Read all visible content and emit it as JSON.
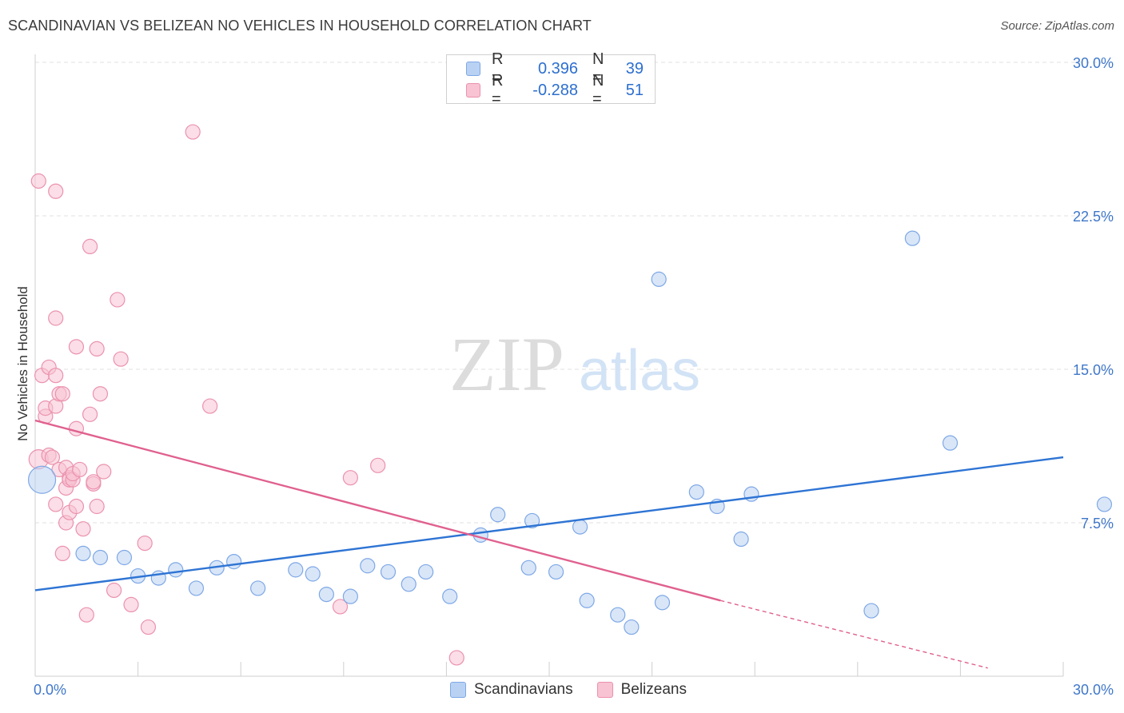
{
  "header": {
    "title": "SCANDINAVIAN VS BELIZEAN NO VEHICLES IN HOUSEHOLD CORRELATION CHART",
    "source": "Source: ZipAtlas.com"
  },
  "legend_top": [
    {
      "r_label": "R =",
      "r_value": "0.396",
      "n_label": "N =",
      "n_value": "39"
    },
    {
      "r_label": "R =",
      "r_value": "-0.288",
      "n_label": "N =",
      "n_value": "51"
    }
  ],
  "legend_bottom": [
    {
      "label": "Scandinavians"
    },
    {
      "label": "Belizeans"
    }
  ],
  "watermark": {
    "zip": "ZIP",
    "atlas": "atlas"
  },
  "colors": {
    "blue_fill": "#b9d2f3",
    "blue_stroke": "#7ea8e6",
    "blue_line": "#2e74d4",
    "pink_fill": "#f8c3d3",
    "pink_stroke": "#eb92ae",
    "pink_line": "#e0608e",
    "tick_text": "#3f77c9",
    "grid": "#e2e2e2"
  },
  "chart_data": {
    "type": "scatter",
    "title": "SCANDINAVIAN VS BELIZEAN NO VEHICLES IN HOUSEHOLD CORRELATION CHART",
    "xlabel": "",
    "ylabel": "No Vehicles in Household",
    "xlim": [
      0,
      30
    ],
    "ylim": [
      0,
      30
    ],
    "x_tick_labels": [
      "0.0%",
      "30.0%"
    ],
    "y_ticks": [
      {
        "value": 7.5,
        "label": "7.5%"
      },
      {
        "value": 15,
        "label": "15.0%"
      },
      {
        "value": 22.5,
        "label": "22.5%"
      },
      {
        "value": 30,
        "label": "30.0%"
      }
    ],
    "grid": true,
    "legend_position": "top-center",
    "series": [
      {
        "name": "Scandinavians",
        "color": "#b9d2f3",
        "r": 0.396,
        "n": 39,
        "trend": {
          "x": [
            0,
            30
          ],
          "y": [
            4.2,
            10.7
          ],
          "dashed_from": null
        },
        "points": [
          [
            0.2,
            9.6,
            3
          ],
          [
            1.4,
            6.0,
            1
          ],
          [
            1.9,
            5.8,
            1
          ],
          [
            2.6,
            5.8,
            1
          ],
          [
            3.0,
            4.9,
            1
          ],
          [
            3.6,
            4.8,
            1
          ],
          [
            4.1,
            5.2,
            1
          ],
          [
            4.7,
            4.3,
            1
          ],
          [
            5.3,
            5.3,
            1
          ],
          [
            5.8,
            5.6,
            1
          ],
          [
            6.5,
            4.3,
            1
          ],
          [
            7.6,
            5.2,
            1
          ],
          [
            8.1,
            5.0,
            1
          ],
          [
            8.5,
            4.0,
            1
          ],
          [
            9.2,
            3.9,
            1
          ],
          [
            9.7,
            5.4,
            1
          ],
          [
            10.3,
            5.1,
            1
          ],
          [
            10.9,
            4.5,
            1
          ],
          [
            11.4,
            5.1,
            1
          ],
          [
            12.1,
            3.9,
            1
          ],
          [
            13.0,
            6.9,
            1
          ],
          [
            13.5,
            7.9,
            1
          ],
          [
            14.4,
            5.3,
            1
          ],
          [
            14.5,
            7.6,
            1
          ],
          [
            15.2,
            5.1,
            1
          ],
          [
            15.9,
            7.3,
            1
          ],
          [
            16.1,
            3.7,
            1
          ],
          [
            17.0,
            3.0,
            1
          ],
          [
            17.4,
            2.4,
            1
          ],
          [
            18.2,
            19.4,
            1
          ],
          [
            18.3,
            3.6,
            1
          ],
          [
            19.3,
            9.0,
            1
          ],
          [
            19.9,
            8.3,
            1
          ],
          [
            20.6,
            6.7,
            1
          ],
          [
            20.9,
            8.9,
            1
          ],
          [
            24.4,
            3.2,
            1
          ],
          [
            25.6,
            21.4,
            1
          ],
          [
            26.7,
            11.4,
            1
          ],
          [
            31.2,
            8.4,
            1
          ]
        ]
      },
      {
        "name": "Belizeans",
        "color": "#f8c3d3",
        "r": -0.288,
        "n": 51,
        "trend": {
          "x": [
            0,
            20.0
          ],
          "y": [
            12.5,
            3.7
          ],
          "dashed_to": [
            27.8,
            0.4
          ]
        },
        "points": [
          [
            0.1,
            10.6,
            2
          ],
          [
            0.1,
            24.2,
            1
          ],
          [
            0.2,
            14.7,
            1
          ],
          [
            0.3,
            12.7,
            1
          ],
          [
            0.3,
            13.1,
            1
          ],
          [
            0.4,
            10.8,
            1
          ],
          [
            0.4,
            15.1,
            1
          ],
          [
            0.5,
            10.7,
            1
          ],
          [
            0.6,
            14.7,
            1
          ],
          [
            0.6,
            17.5,
            1
          ],
          [
            0.6,
            8.4,
            1
          ],
          [
            0.6,
            23.7,
            1
          ],
          [
            0.6,
            13.2,
            1
          ],
          [
            0.7,
            10.1,
            1
          ],
          [
            0.7,
            13.8,
            1
          ],
          [
            0.8,
            6.0,
            1
          ],
          [
            0.8,
            13.8,
            1
          ],
          [
            0.9,
            7.5,
            1
          ],
          [
            0.9,
            9.2,
            1
          ],
          [
            0.9,
            10.2,
            1
          ],
          [
            1.0,
            8.0,
            1
          ],
          [
            1.0,
            9.7,
            1
          ],
          [
            1.0,
            9.6,
            1
          ],
          [
            1.1,
            9.6,
            1
          ],
          [
            1.1,
            9.9,
            1
          ],
          [
            1.2,
            12.1,
            1
          ],
          [
            1.2,
            16.1,
            1
          ],
          [
            1.2,
            8.3,
            1
          ],
          [
            1.3,
            10.1,
            1
          ],
          [
            1.4,
            7.2,
            1
          ],
          [
            1.5,
            3.0,
            1
          ],
          [
            1.6,
            12.8,
            1
          ],
          [
            1.6,
            21.0,
            1
          ],
          [
            1.7,
            9.4,
            1
          ],
          [
            1.7,
            9.5,
            1
          ],
          [
            1.8,
            16.0,
            1
          ],
          [
            1.8,
            8.3,
            1
          ],
          [
            1.9,
            13.8,
            1
          ],
          [
            2.0,
            10.0,
            1
          ],
          [
            2.3,
            4.2,
            1
          ],
          [
            2.4,
            18.4,
            1
          ],
          [
            2.5,
            15.5,
            1
          ],
          [
            2.8,
            3.5,
            1
          ],
          [
            3.2,
            6.5,
            1
          ],
          [
            3.3,
            2.4,
            1
          ],
          [
            4.6,
            26.6,
            1
          ],
          [
            5.1,
            13.2,
            1
          ],
          [
            8.9,
            3.4,
            1
          ],
          [
            9.2,
            9.7,
            1
          ],
          [
            10.0,
            10.3,
            1
          ],
          [
            12.3,
            0.9,
            1
          ]
        ]
      }
    ]
  }
}
